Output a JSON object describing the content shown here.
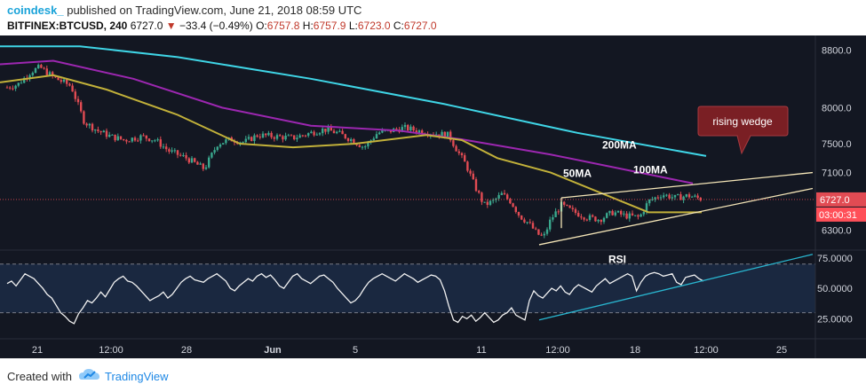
{
  "header": {
    "brand": "coindesk_",
    "published": "published on TradingView.com, June 21, 2018 08:59 UTC",
    "symbol": "BITFINEX:BTCUSD, 240",
    "last": "6727.0",
    "change": "−33.4 (−0.49%)",
    "o_label": "O:",
    "o": "6757.8",
    "h_label": "H:",
    "h": "6757.9",
    "l_label": "L:",
    "l": "6723.0",
    "c_label": "C:",
    "c": "6727.0"
  },
  "footer": {
    "created": "Created with",
    "brand": "TradingView"
  },
  "colors": {
    "background": "#131722",
    "up": "#3aa88e",
    "down": "#e14b53",
    "ma50": "#c2b13a",
    "ma100": "#9c27b0",
    "ma200": "#3fd5e6",
    "wedge": "#f5e6b8",
    "rsi_trend": "#29b6d0",
    "callout": "#7a1f24"
  },
  "chart_data": [
    {
      "type": "candlestick",
      "title": "BITFINEX:BTCUSD, 240",
      "ylim": [
        6050,
        9000
      ],
      "y_axis_side": "right",
      "y_ticks": [
        "8800.0",
        "8000.0",
        "7500.0",
        "7100.0",
        "6300.0"
      ],
      "x_ticks": [
        "21",
        "12:00",
        "28",
        "Jun",
        "5",
        "11",
        "12:00",
        "18",
        "12:00",
        "25"
      ],
      "price_label": "6727.0",
      "countdown_label": "03:00:31",
      "grid": false,
      "series": [
        {
          "name": "200MA",
          "points": [
            [
              0,
              8850
            ],
            [
              90,
              8850
            ],
            [
              200,
              8700
            ],
            [
              350,
              8400
            ],
            [
              500,
              8050
            ],
            [
              650,
              7650
            ],
            [
              795,
              7330
            ]
          ]
        },
        {
          "name": "100MA",
          "points": [
            [
              0,
              8600
            ],
            [
              60,
              8650
            ],
            [
              150,
              8400
            ],
            [
              250,
              8000
            ],
            [
              350,
              7750
            ],
            [
              450,
              7680
            ],
            [
              520,
              7560
            ],
            [
              620,
              7350
            ],
            [
              700,
              7150
            ],
            [
              780,
              6950
            ]
          ]
        },
        {
          "name": "50MA",
          "points": [
            [
              0,
              8350
            ],
            [
              60,
              8450
            ],
            [
              120,
              8250
            ],
            [
              200,
              7900
            ],
            [
              270,
              7500
            ],
            [
              330,
              7450
            ],
            [
              400,
              7500
            ],
            [
              480,
              7620
            ],
            [
              520,
              7550
            ],
            [
              560,
              7300
            ],
            [
              620,
              7100
            ],
            [
              690,
              6750
            ],
            [
              730,
              6550
            ],
            [
              790,
              6550
            ]
          ]
        }
      ],
      "wedge_lines": [
        [
          [
            632,
            6750
          ],
          [
            915,
            7100
          ]
        ],
        [
          [
            607,
            6100
          ],
          [
            915,
            6880
          ]
        ],
        [
          [
            632,
            6750
          ],
          [
            632,
            6330
          ]
        ]
      ],
      "annotations": [
        {
          "text": "200MA"
        },
        {
          "text": "100MA"
        },
        {
          "text": "50MA"
        },
        {
          "text": "rising wedge"
        }
      ]
    },
    {
      "type": "line",
      "title": "RSI",
      "ylim": [
        10,
        80
      ],
      "y_ticks": [
        "75.0000",
        "50.0000",
        "25.0000"
      ],
      "bands": [
        70,
        30
      ],
      "values": [
        54,
        56,
        52,
        57,
        62,
        60,
        58,
        54,
        50,
        45,
        42,
        36,
        30,
        27,
        23,
        21,
        29,
        34,
        40,
        38,
        42,
        47,
        43,
        49,
        55,
        58,
        60,
        56,
        55,
        52,
        48,
        44,
        40,
        42,
        44,
        47,
        42,
        45,
        50,
        55,
        58,
        60,
        57,
        56,
        55,
        58,
        60,
        62,
        59,
        56,
        50,
        48,
        52,
        55,
        58,
        56,
        60,
        62,
        59,
        61,
        57,
        52,
        50,
        55,
        60,
        62,
        58,
        56,
        54,
        57,
        60,
        61,
        58,
        55,
        50,
        46,
        42,
        38,
        40,
        44,
        50,
        55,
        58,
        60,
        62,
        60,
        58,
        56,
        59,
        62,
        60,
        58,
        55,
        57,
        59,
        61,
        60,
        57,
        48,
        35,
        24,
        22,
        27,
        25,
        28,
        23,
        26,
        30,
        26,
        22,
        24,
        28,
        30,
        34,
        28,
        26,
        24,
        40,
        48,
        44,
        42,
        46,
        50,
        48,
        52,
        47,
        45,
        50,
        53,
        51,
        49,
        47,
        52,
        55,
        58,
        54,
        56,
        58,
        60,
        62,
        60,
        48,
        55,
        60,
        62,
        63,
        62,
        60,
        61,
        62,
        55,
        53,
        59,
        60,
        61,
        58,
        56
      ],
      "trendline": [
        [
          607,
          24
        ],
        [
          915,
          78
        ]
      ]
    }
  ]
}
